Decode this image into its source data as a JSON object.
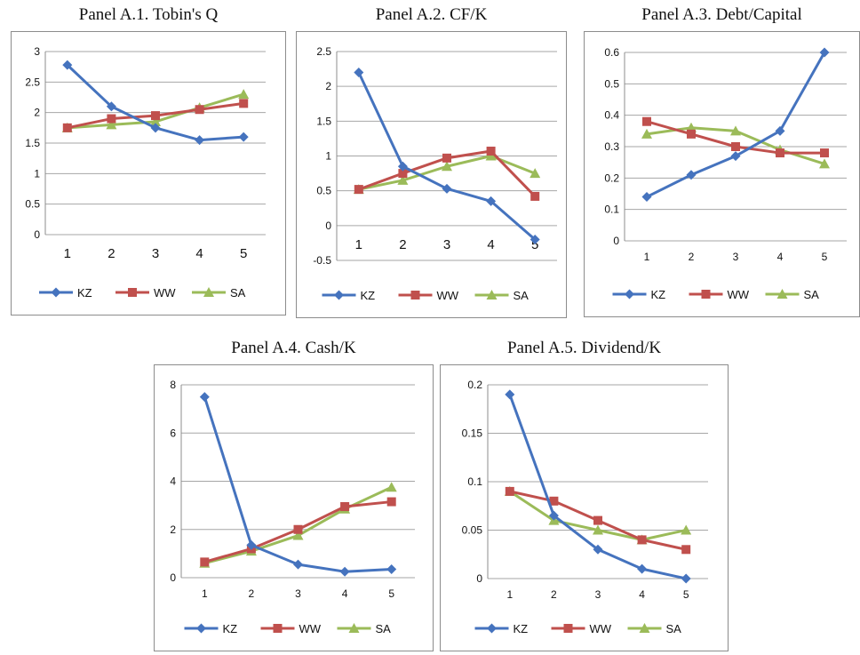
{
  "colors": {
    "KZ": "#4573BE",
    "WW": "#C0504D",
    "SA": "#9BBB59",
    "grid": "#a6a6a6",
    "border": "#8c8c8c"
  },
  "chart_data": [
    {
      "type": "line",
      "title": "Panel A.1. Tobin's Q",
      "x": [
        "1",
        "2",
        "3",
        "4",
        "5"
      ],
      "yticks": [
        "0",
        "0.5",
        "1",
        "1.5",
        "2",
        "2.5",
        "3"
      ],
      "ylim": [
        0,
        3
      ],
      "grid": true,
      "legend": "bottom",
      "series": [
        {
          "name": "KZ",
          "values": [
            2.78,
            2.1,
            1.75,
            1.55,
            1.6
          ]
        },
        {
          "name": "WW",
          "values": [
            1.75,
            1.9,
            1.95,
            2.05,
            2.15
          ]
        },
        {
          "name": "SA",
          "values": [
            1.75,
            1.8,
            1.85,
            2.08,
            2.3
          ]
        }
      ]
    },
    {
      "type": "line",
      "title": "Panel A.2. CF/K",
      "x": [
        "1",
        "2",
        "3",
        "4",
        "5"
      ],
      "yticks": [
        "-0.5",
        "0",
        "0.5",
        "1",
        "1.5",
        "2",
        "2.5"
      ],
      "ylim": [
        -0.5,
        2.5
      ],
      "grid": true,
      "legend": "bottom",
      "series": [
        {
          "name": "KZ",
          "values": [
            2.2,
            0.85,
            0.53,
            0.35,
            -0.2
          ]
        },
        {
          "name": "WW",
          "values": [
            0.52,
            0.75,
            0.97,
            1.07,
            0.42
          ]
        },
        {
          "name": "SA",
          "values": [
            0.52,
            0.65,
            0.85,
            1.0,
            0.75
          ]
        }
      ]
    },
    {
      "type": "line",
      "title": "Panel A.3. Debt/Capital",
      "x": [
        "1",
        "2",
        "3",
        "4",
        "5"
      ],
      "yticks": [
        "0",
        "0.1",
        "0.2",
        "0.3",
        "0.4",
        "0.5",
        "0.6"
      ],
      "ylim": [
        0,
        0.6
      ],
      "grid": true,
      "legend": "bottom",
      "series": [
        {
          "name": "KZ",
          "values": [
            0.14,
            0.21,
            0.27,
            0.35,
            0.6
          ]
        },
        {
          "name": "WW",
          "values": [
            0.38,
            0.34,
            0.3,
            0.28,
            0.28
          ]
        },
        {
          "name": "SA",
          "values": [
            0.34,
            0.36,
            0.35,
            0.29,
            0.245
          ]
        }
      ]
    },
    {
      "type": "line",
      "title": "Panel A.4. Cash/K",
      "x": [
        "1",
        "2",
        "3",
        "4",
        "5"
      ],
      "yticks": [
        "0",
        "2",
        "4",
        "6",
        "8"
      ],
      "ylim": [
        0,
        8
      ],
      "grid": true,
      "legend": "bottom",
      "series": [
        {
          "name": "KZ",
          "values": [
            7.5,
            1.35,
            0.55,
            0.25,
            0.35
          ]
        },
        {
          "name": "WW",
          "values": [
            0.65,
            1.2,
            2.0,
            2.95,
            3.15
          ]
        },
        {
          "name": "SA",
          "values": [
            0.6,
            1.1,
            1.75,
            2.85,
            3.75
          ]
        }
      ]
    },
    {
      "type": "line",
      "title": "Panel A.5. Dividend/K",
      "x": [
        "1",
        "2",
        "3",
        "4",
        "5"
      ],
      "yticks": [
        "0",
        "0.05",
        "0.1",
        "0.15",
        "0.2"
      ],
      "ylim": [
        0,
        0.2
      ],
      "grid": true,
      "legend": "bottom",
      "series": [
        {
          "name": "KZ",
          "values": [
            0.19,
            0.065,
            0.03,
            0.01,
            0.0
          ]
        },
        {
          "name": "WW",
          "values": [
            0.09,
            0.08,
            0.06,
            0.04,
            0.03
          ]
        },
        {
          "name": "SA",
          "values": [
            0.09,
            0.06,
            0.05,
            0.04,
            0.05
          ]
        }
      ]
    }
  ]
}
